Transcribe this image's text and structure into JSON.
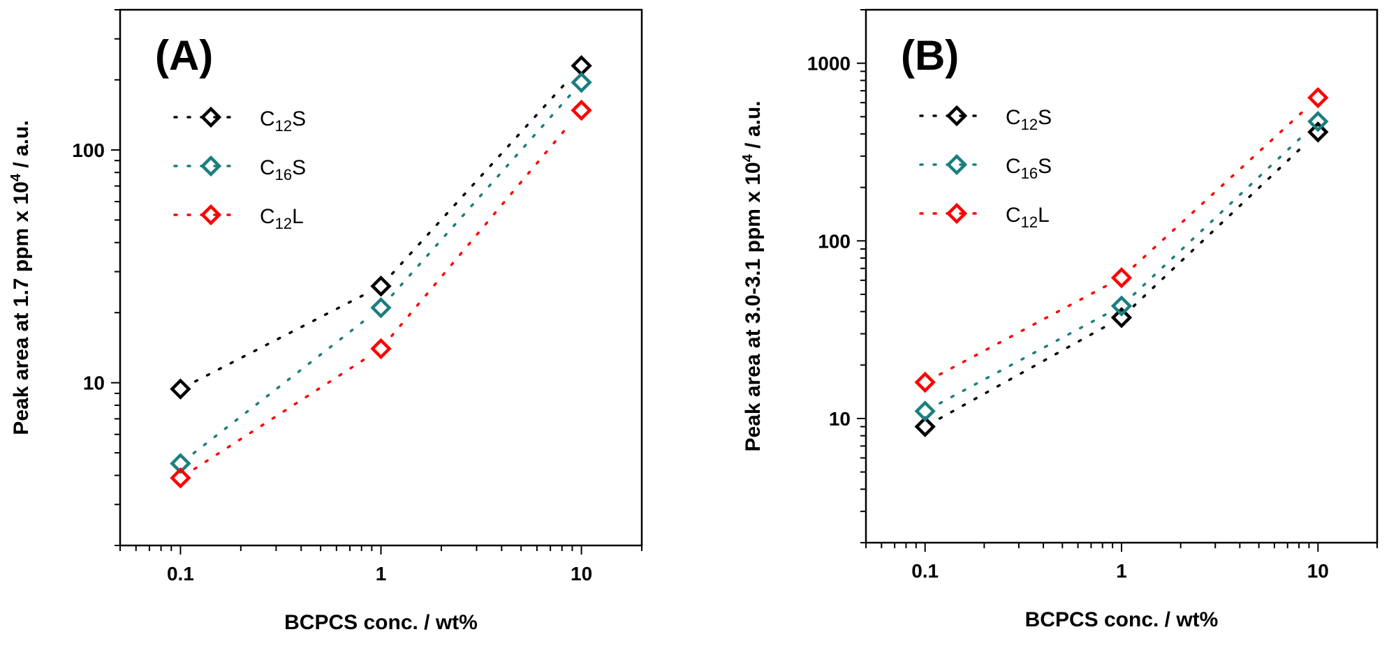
{
  "chart_data": [
    {
      "type": "scatter",
      "panel_label": "(A)",
      "xlabel": "BCPCS conc. / wt%",
      "ylabel": "Peak area at 1.7 ppm x 10",
      "ylabel_sup": "4",
      "ylabel_suffix": " / a.u.",
      "x_scale": "log",
      "y_scale": "log",
      "xlim": [
        0.05,
        20
      ],
      "ylim": [
        2,
        400
      ],
      "x_ticks": [
        0.1,
        1,
        10
      ],
      "x_tick_labels": [
        "0.1",
        "1",
        "10"
      ],
      "y_ticks": [
        10,
        100
      ],
      "y_tick_labels": [
        "10",
        "100"
      ],
      "legend_position": "top-left",
      "series": [
        {
          "name": "C12S",
          "base": "C",
          "sub": "12",
          "suffix": "S",
          "color": "#000000",
          "x": [
            0.1,
            1,
            10
          ],
          "values": [
            9.4,
            26,
            230
          ]
        },
        {
          "name": "C16S",
          "base": "C",
          "sub": "16",
          "suffix": "S",
          "color": "#1a7f7f",
          "x": [
            0.1,
            1,
            10
          ],
          "values": [
            4.5,
            21,
            195
          ]
        },
        {
          "name": "C12L",
          "base": "C",
          "sub": "12",
          "suffix": "L",
          "color": "#ff0000",
          "x": [
            0.1,
            1,
            10
          ],
          "values": [
            3.9,
            14,
            148
          ]
        }
      ]
    },
    {
      "type": "scatter",
      "panel_label": "(B)",
      "xlabel": "BCPCS conc. / wt%",
      "ylabel": "Peak area at 3.0-3.1 ppm x 10",
      "ylabel_sup": "4",
      "ylabel_suffix": " / a.u.",
      "x_scale": "log",
      "y_scale": "log",
      "xlim": [
        0.05,
        20
      ],
      "ylim": [
        2,
        2000
      ],
      "x_ticks": [
        0.1,
        1,
        10
      ],
      "x_tick_labels": [
        "0.1",
        "1",
        "10"
      ],
      "y_ticks": [
        10,
        100,
        1000
      ],
      "y_tick_labels": [
        "10",
        "100",
        "1000"
      ],
      "legend_position": "top-left",
      "series": [
        {
          "name": "C12S",
          "base": "C",
          "sub": "12",
          "suffix": "S",
          "color": "#000000",
          "x": [
            0.1,
            1,
            10
          ],
          "values": [
            9,
            37,
            410
          ]
        },
        {
          "name": "C16S",
          "base": "C",
          "sub": "16",
          "suffix": "S",
          "color": "#1a7f7f",
          "x": [
            0.1,
            1,
            10
          ],
          "values": [
            11,
            43,
            470
          ]
        },
        {
          "name": "C12L",
          "base": "C",
          "sub": "12",
          "suffix": "L",
          "color": "#ff0000",
          "x": [
            0.1,
            1,
            10
          ],
          "values": [
            16,
            62,
            640
          ]
        }
      ]
    }
  ]
}
